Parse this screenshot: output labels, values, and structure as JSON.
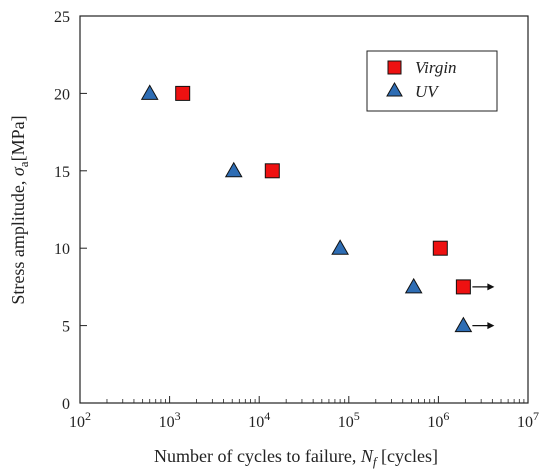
{
  "chart_data": {
    "type": "scatter",
    "xscale": "log",
    "xlim": [
      100,
      10000000
    ],
    "ylim": [
      0,
      25
    ],
    "x_ticks": [
      100,
      1000,
      10000,
      100000,
      1000000,
      10000000
    ],
    "x_tick_labels": [
      {
        "base": "10",
        "exp": "2"
      },
      {
        "base": "10",
        "exp": "3"
      },
      {
        "base": "10",
        "exp": "4"
      },
      {
        "base": "10",
        "exp": "5"
      },
      {
        "base": "10",
        "exp": "6"
      },
      {
        "base": "10",
        "exp": "7"
      }
    ],
    "y_ticks": [
      0,
      5,
      10,
      15,
      20,
      25
    ],
    "y_tick_labels": [
      "0",
      "5",
      "10",
      "15",
      "20",
      "25"
    ],
    "xlabel": {
      "prefix": "Number of cycles to failure, ",
      "symbol": "N",
      "sub": "f",
      "suffix": " [cycles]"
    },
    "ylabel": {
      "prefix": "Stress amplitude, ",
      "symbol": "σ",
      "sub": "a",
      "suffix": "[MPa]"
    },
    "grid": false,
    "legend_position": "top-right",
    "series": [
      {
        "name": "Virgin",
        "marker": "square",
        "color": "#ee1111",
        "points": [
          {
            "x": 1400,
            "y": 20
          },
          {
            "x": 14000,
            "y": 15
          },
          {
            "x": 1050000,
            "y": 10
          },
          {
            "x": 1900000,
            "y": 7.5,
            "runout": true
          }
        ]
      },
      {
        "name": "UV",
        "marker": "triangle",
        "color": "#2e6db4",
        "points": [
          {
            "x": 600,
            "y": 20
          },
          {
            "x": 5200,
            "y": 15
          },
          {
            "x": 80000,
            "y": 10
          },
          {
            "x": 530000,
            "y": 7.5
          },
          {
            "x": 1900000,
            "y": 5,
            "runout": true
          }
        ]
      }
    ]
  }
}
